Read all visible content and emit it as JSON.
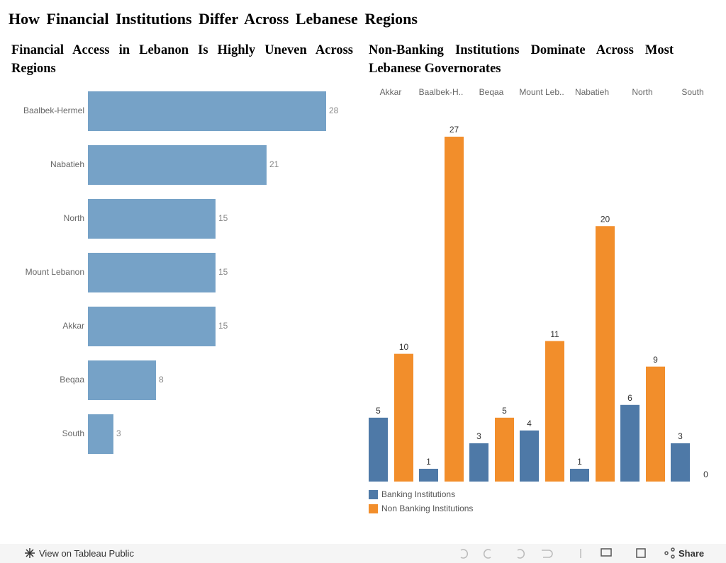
{
  "title": "How Financial Institutions Differ Across Lebanese Regions",
  "chart_data": [
    {
      "type": "hbar",
      "title": "Financial Access in Lebanon Is Highly Uneven Across Regions",
      "categories": [
        "Baalbek-Hermel",
        "Nabatieh",
        "North",
        "Mount Lebanon",
        "Akkar",
        "Beqaa",
        "South"
      ],
      "values": [
        28,
        21,
        15,
        15,
        15,
        8,
        3
      ],
      "color": "#76a2c7"
    },
    {
      "type": "grouped_bar",
      "title": "Non-Banking Institutions Dominate Across Most Lebanese Governorates",
      "categories": [
        "Akkar",
        "Baalbek-H..",
        "Beqaa",
        "Mount Leb..",
        "Nabatieh",
        "North",
        "South"
      ],
      "series": [
        {
          "name": "Banking Institutions",
          "color": "#4e79a7",
          "values": [
            5,
            1,
            3,
            4,
            1,
            6,
            3
          ]
        },
        {
          "name": "Non Banking Institutions",
          "color": "#f28e2b",
          "values": [
            10,
            27,
            5,
            11,
            20,
            9,
            0
          ]
        }
      ]
    }
  ],
  "footer": {
    "link": "View on Tableau Public",
    "share": "Share"
  }
}
